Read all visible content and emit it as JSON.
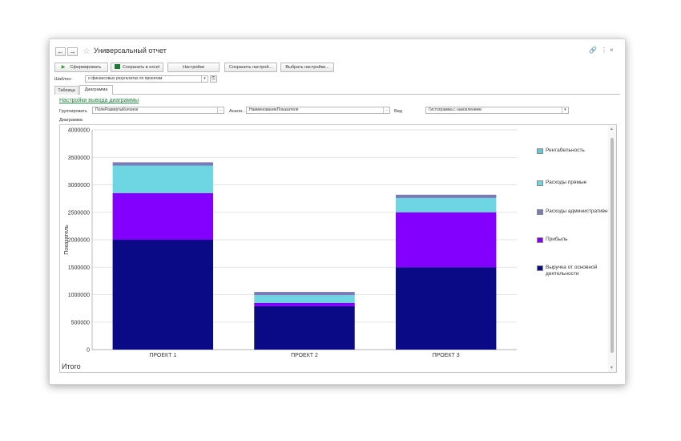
{
  "window": {
    "title": "Универсальный отчет",
    "back_icon": "←",
    "forward_icon": "→",
    "link_icon": "🔗",
    "more_icon": "⋮",
    "close_icon": "×"
  },
  "toolbar": {
    "generate_label": "Сформировать",
    "save_excel_label": "Сохранить в excel",
    "settings_label": "Настройки",
    "save_settings_label": "Сохранить настрой...",
    "select_settings_label": "Выбрать настройки..."
  },
  "template": {
    "label": "Шаблон:",
    "value": "о финансовых результатах по проектам"
  },
  "tabs": [
    "Таблица",
    "Диаграмма"
  ],
  "settings_link": "Настройки вывода диаграммы",
  "options": {
    "group_label": "Группировать",
    "group_value": "ПолеРазвертыКолонок",
    "analysis_label": "Анали...",
    "analysis_value": "НаименованиеПоказателя",
    "view_label": "Вид",
    "view_value": "Гистограмма с накоплением"
  },
  "diagram_label": "Диаграмма:",
  "footer_label": "Итого",
  "colors": {
    "revenue": "#0a0a86",
    "profit": "#8300ff",
    "admin": "#7a7ab8",
    "direct": "#6ed6e3",
    "rentability": "#5fc9d8"
  },
  "chart_data": {
    "type": "bar",
    "stacked": true,
    "categories": [
      "ПРОЕКТ 1",
      "ПРОЕКТ 2",
      "ПРОЕКТ 3"
    ],
    "ylabel": "Показатель",
    "ylim": [
      0,
      4000000
    ],
    "yticks": [
      "0",
      "500000",
      "1000000",
      "1500000",
      "2000000",
      "2500000",
      "3000000",
      "3500000",
      "4000000"
    ],
    "series": [
      {
        "name": "Выручка от основной деятельности",
        "values": [
          2000000,
          790000,
          1500000
        ],
        "color": "#0a0a86"
      },
      {
        "name": "Прибыль",
        "values": [
          850000,
          60000,
          1000000
        ],
        "color": "#8300ff"
      },
      {
        "name": "Расходы прямые",
        "values": [
          500000,
          140000,
          260000
        ],
        "color": "#6ed6e3"
      },
      {
        "name": "Расходы административные",
        "values": [
          60000,
          60000,
          60000
        ],
        "color": "#7a7ab8"
      },
      {
        "name": "Рентабельность",
        "values": [
          5,
          2,
          5
        ],
        "color": "#5fc9d8"
      }
    ],
    "legend": [
      "Рентабельность",
      "Расходы прямые",
      "Расходы административные",
      "Прибыль",
      "Выручка от основной деятельности"
    ],
    "legend_position": "right",
    "grid": true
  }
}
